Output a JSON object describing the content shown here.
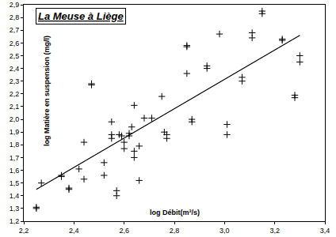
{
  "chart_data": {
    "type": "scatter",
    "title": "La Meuse à Liège",
    "xlabel": "log Débit(m³/s)",
    "ylabel": "log Matière en suspension (mg/l)",
    "xlim": [
      2.2,
      3.4
    ],
    "ylim": [
      1.2,
      2.9
    ],
    "xticks": [
      {
        "value": 2.2,
        "label": "2,2"
      },
      {
        "value": 2.4,
        "label": "2,4"
      },
      {
        "value": 2.6,
        "label": "2,6"
      },
      {
        "value": 2.8,
        "label": "2,8"
      },
      {
        "value": 3.0,
        "label": "3,0"
      },
      {
        "value": 3.2,
        "label": "3,2"
      },
      {
        "value": 3.4,
        "label": "3,4"
      }
    ],
    "yticks": [
      {
        "value": 1.2,
        "label": "1,2"
      },
      {
        "value": 1.3,
        "label": "1,3"
      },
      {
        "value": 1.4,
        "label": "1,4"
      },
      {
        "value": 1.5,
        "label": "1,5"
      },
      {
        "value": 1.6,
        "label": "1,6"
      },
      {
        "value": 1.7,
        "label": "1,7"
      },
      {
        "value": 1.8,
        "label": "1,8"
      },
      {
        "value": 1.9,
        "label": "1,9"
      },
      {
        "value": 2.0,
        "label": "2,0"
      },
      {
        "value": 2.1,
        "label": "2,1"
      },
      {
        "value": 2.2,
        "label": "2,2"
      },
      {
        "value": 2.3,
        "label": "2,3"
      },
      {
        "value": 2.4,
        "label": "2,4"
      },
      {
        "value": 2.5,
        "label": "2,5"
      },
      {
        "value": 2.6,
        "label": "2,6"
      },
      {
        "value": 2.7,
        "label": "2,7"
      },
      {
        "value": 2.8,
        "label": "2,8"
      },
      {
        "value": 2.9,
        "label": "2,9"
      }
    ],
    "grid": false,
    "series": [
      {
        "type": "scatter",
        "color": "#000000",
        "marker": "cross",
        "x": [
          2.25,
          2.25,
          2.27,
          2.35,
          2.35,
          2.38,
          2.38,
          2.42,
          2.44,
          2.44,
          2.47,
          2.47,
          2.52,
          2.52,
          2.55,
          2.55,
          2.55,
          2.57,
          2.57,
          2.58,
          2.59,
          2.6,
          2.6,
          2.62,
          2.62,
          2.63,
          2.64,
          2.64,
          2.64,
          2.66,
          2.66,
          2.68,
          2.71,
          2.75,
          2.76,
          2.77,
          2.77,
          2.85,
          2.85,
          2.85,
          2.87,
          2.87,
          2.93,
          2.93,
          2.98,
          3.01,
          3.01,
          3.07,
          3.07,
          3.11,
          3.11,
          3.15,
          3.15,
          3.23,
          3.23,
          3.28,
          3.28,
          3.3,
          3.3
        ],
        "values": [
          1.31,
          1.3,
          1.5,
          1.55,
          1.56,
          1.45,
          1.46,
          1.61,
          1.82,
          1.53,
          2.27,
          2.28,
          1.56,
          1.66,
          1.98,
          1.85,
          1.88,
          1.4,
          1.44,
          1.88,
          1.87,
          1.82,
          1.77,
          1.89,
          1.87,
          1.94,
          2.11,
          1.75,
          1.7,
          1.52,
          1.79,
          2.01,
          2.01,
          2.18,
          1.9,
          1.88,
          1.85,
          2.58,
          2.57,
          2.36,
          2.0,
          1.98,
          2.42,
          2.4,
          2.67,
          1.96,
          1.88,
          2.33,
          2.3,
          2.68,
          2.64,
          2.85,
          2.83,
          2.63,
          2.62,
          2.19,
          2.17,
          2.5,
          2.45
        ]
      },
      {
        "type": "line",
        "color": "#000000",
        "line_style": "solid",
        "x": [
          2.25,
          3.3
        ],
        "values": [
          1.45,
          2.66
        ]
      }
    ]
  }
}
